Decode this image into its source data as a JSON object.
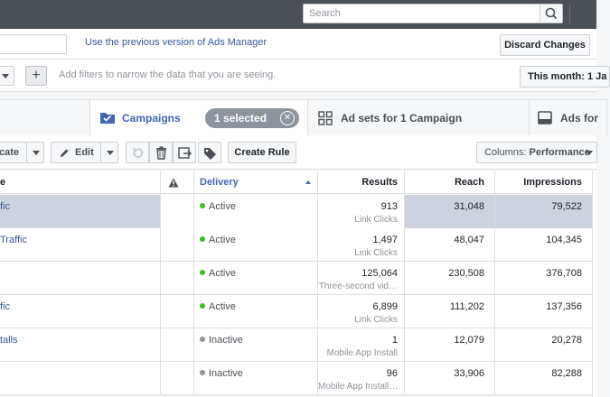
{
  "topbar": {
    "search_placeholder": "Search"
  },
  "header": {
    "prev_version_link": "Use the previous version of Ads Manager",
    "discard_label": "Discard Changes"
  },
  "filters": {
    "placeholder": "Add filters to narrow the data that you are seeing.",
    "date_range": "This month: 1 Ja"
  },
  "tabs": {
    "campaigns": "Campaigns",
    "selected": "1 selected",
    "adsets": "Ad sets for 1 Campaign",
    "ads": "Ads for"
  },
  "toolbar": {
    "duplicate": "cate",
    "edit": "Edit",
    "create_rule": "Create Rule",
    "columns_prefix": "Columns: ",
    "columns_value": "Performance"
  },
  "table": {
    "headers": {
      "name": "e",
      "delivery": "Delivery",
      "results": "Results",
      "reach": "Reach",
      "impressions": "Impressions"
    },
    "rows": [
      {
        "name": "fic",
        "delivery": "Active",
        "status": "active",
        "results": "913",
        "result_type": "Link Clicks",
        "reach": "31,048",
        "impressions": "79,522",
        "selected": true
      },
      {
        "name": "Traffic",
        "delivery": "Active",
        "status": "active",
        "results": "1,497",
        "result_type": "Link Clicks",
        "reach": "48,047",
        "impressions": "104,345"
      },
      {
        "name": "",
        "delivery": "Active",
        "status": "active",
        "results": "125,064",
        "result_type": "Three-second vid…",
        "reach": "230,508",
        "impressions": "376,708"
      },
      {
        "name": "fic",
        "delivery": "Active",
        "status": "active",
        "results": "6,899",
        "result_type": "Link Clicks",
        "reach": "111,202",
        "impressions": "137,356"
      },
      {
        "name": "talls",
        "delivery": "Inactive",
        "status": "inactive",
        "results": "1",
        "result_type": "Mobile App Install",
        "reach": "12,079",
        "impressions": "20,278"
      },
      {
        "name": "",
        "delivery": "Inactive",
        "status": "inactive",
        "results": "96",
        "result_type": "Mobile App Install…",
        "reach": "33,906",
        "impressions": "82,288"
      }
    ]
  },
  "colors": {
    "topbar": "#4b4f56",
    "link": "#365899",
    "accent": "#4267b2",
    "active_dot": "#42b72a",
    "inactive_dot": "#8d949e",
    "selected_row": "#cdd3de"
  }
}
